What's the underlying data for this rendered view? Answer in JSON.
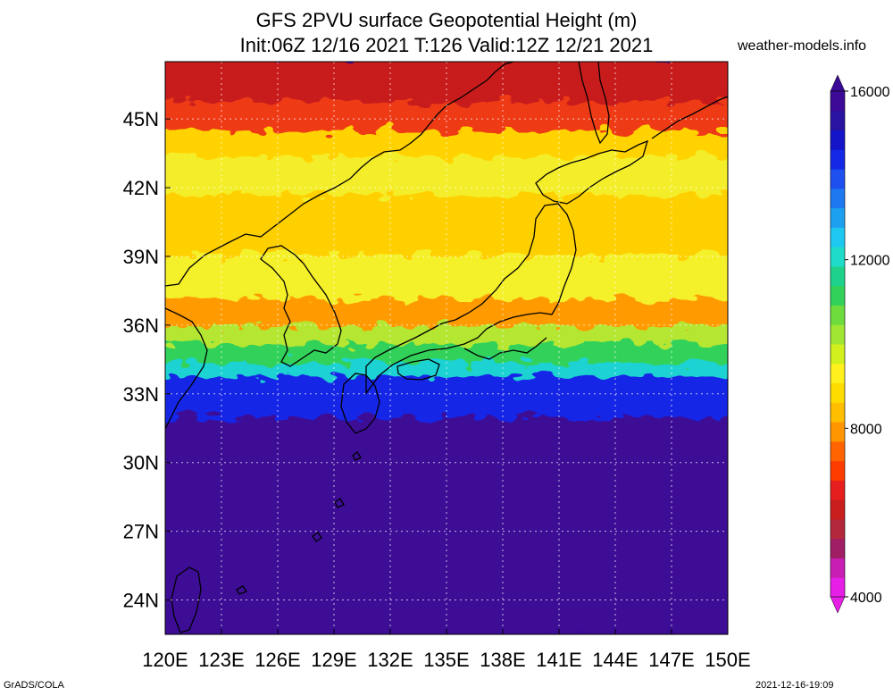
{
  "header": {
    "title_line1": "GFS 2PVU surface Geopotential Height (m)",
    "title_line2": "Init:06Z 12/16 2021 T:126 Valid:12Z 12/21 2021",
    "site": "weather-models.info"
  },
  "map": {
    "region": "Japan / East Asia",
    "lon_range": [
      120,
      150
    ],
    "lat_range": [
      22.5,
      47.5
    ],
    "lon_ticks": [
      "120E",
      "123E",
      "126E",
      "129E",
      "132E",
      "135E",
      "138E",
      "141E",
      "144E",
      "147E",
      "150E"
    ],
    "lat_ticks": [
      "45N",
      "42N",
      "39N",
      "36N",
      "33N",
      "30N",
      "27N",
      "24N"
    ],
    "lat_tick_values": [
      45,
      42,
      39,
      36,
      33,
      30,
      27,
      24
    ],
    "lon_tick_values": [
      120,
      123,
      126,
      129,
      132,
      135,
      138,
      141,
      144,
      147,
      150
    ],
    "grid": true,
    "field_bands": [
      {
        "lat_top": 47.5,
        "lat_bottom": 45.6,
        "color": "#c81e1e"
      },
      {
        "lat_top": 45.6,
        "lat_bottom": 44.3,
        "color": "#ee3a18"
      },
      {
        "lat_top": 44.3,
        "lat_bottom": 43.2,
        "color": "#ffd200"
      },
      {
        "lat_top": 43.2,
        "lat_bottom": 41.5,
        "color": "#f4ee2a"
      },
      {
        "lat_top": 41.5,
        "lat_bottom": 38.9,
        "color": "#ffd000"
      },
      {
        "lat_top": 38.9,
        "lat_bottom": 37.0,
        "color": "#f4f02a"
      },
      {
        "lat_top": 37.0,
        "lat_bottom": 35.8,
        "color": "#ff9a00"
      },
      {
        "lat_top": 35.8,
        "lat_bottom": 35.0,
        "color": "#b4e632"
      },
      {
        "lat_top": 35.0,
        "lat_bottom": 34.2,
        "color": "#32d25a"
      },
      {
        "lat_top": 34.2,
        "lat_bottom": 33.6,
        "color": "#1ed2d2"
      },
      {
        "lat_top": 33.6,
        "lat_bottom": 31.8,
        "color": "#1428e6"
      },
      {
        "lat_top": 31.8,
        "lat_bottom": 22.5,
        "color": "#3c0a96"
      }
    ]
  },
  "colorbar": {
    "labels": [
      "16000",
      "12000",
      "8000",
      "4000"
    ],
    "label_values": [
      16000,
      12000,
      8000,
      4000
    ],
    "range": [
      4000,
      16000
    ],
    "colors": [
      "#e61ee6",
      "#c81eb4",
      "#a01e64",
      "#b4283c",
      "#c81e1e",
      "#e61e1e",
      "#ff3c00",
      "#ff6400",
      "#ff9600",
      "#ffbe00",
      "#ffdc00",
      "#fff01e",
      "#d2f01e",
      "#a0e632",
      "#6edc3c",
      "#32d25a",
      "#1ed28c",
      "#1edcc8",
      "#1ec8f0",
      "#1ea0f0",
      "#1e78f0",
      "#1e50f0",
      "#1428e6",
      "#1414c8",
      "#2814a0",
      "#3c0a96"
    ]
  },
  "footer": {
    "left": "GrADS/COLA",
    "right": "2021-12-16-19:09"
  }
}
